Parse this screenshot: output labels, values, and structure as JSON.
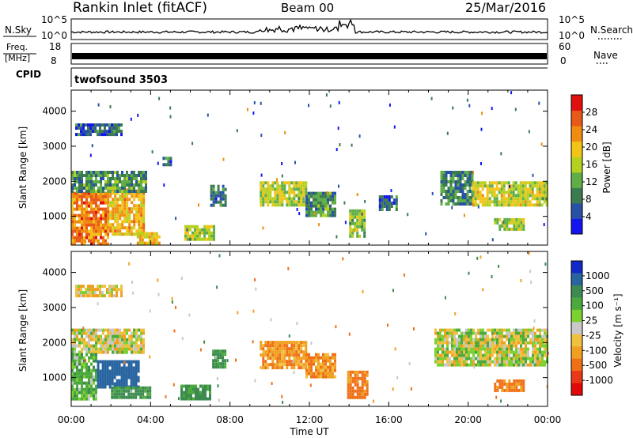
{
  "header": {
    "station": "Rankin Inlet (fitACF)",
    "beam": "Beam 00",
    "date": "25/Mar/2016"
  },
  "panels": {
    "nsky": {
      "left_label": "N.Sky",
      "right_label": "N.Search",
      "ticks_left": [
        "10^5",
        "10^0"
      ],
      "ticks_right": [
        "10^5",
        "10^0"
      ]
    },
    "freq": {
      "left_label_1": "Freq.",
      "left_label_2": "[MHz]",
      "right_label": "Nave",
      "ticks_left": [
        "18",
        "8"
      ],
      "ticks_right": [
        "60",
        "0"
      ]
    },
    "cpid": {
      "left_label": "CPID",
      "text": "twofsound 3503"
    }
  },
  "chart_data": [
    {
      "type": "heatmap",
      "name": "power",
      "xlabel": "",
      "ylabel": "Slant Range [km]",
      "xlim": [
        0,
        24
      ],
      "ylim": [
        180,
        4600
      ],
      "yticks": [
        1000,
        2000,
        3000,
        4000
      ],
      "colorbar": {
        "label": "Power [dB]",
        "ticks": [
          4,
          8,
          12,
          16,
          20,
          24,
          28
        ],
        "colors": [
          "#1414ee",
          "#2851a6",
          "#3c7a50",
          "#5fae48",
          "#b6d020",
          "#f2c418",
          "#f08c10",
          "#e85818",
          "#e01010"
        ]
      },
      "regions": [
        {
          "t0": 0.0,
          "t1": 1.8,
          "r0": 250,
          "r1": 1700,
          "level": 26
        },
        {
          "t0": 1.8,
          "t1": 3.6,
          "r0": 500,
          "r1": 1800,
          "level": 22
        },
        {
          "t0": 0.0,
          "t1": 3.8,
          "r0": 1700,
          "r1": 2300,
          "level": 11
        },
        {
          "t0": 0.2,
          "t1": 2.5,
          "r0": 3350,
          "r1": 3650,
          "level": 7
        },
        {
          "t0": 4.6,
          "t1": 5.0,
          "r0": 2450,
          "r1": 2700,
          "level": 8
        },
        {
          "t0": 3.3,
          "t1": 4.4,
          "r0": 200,
          "r1": 550,
          "level": 21
        },
        {
          "t0": 5.7,
          "t1": 7.2,
          "r0": 350,
          "r1": 750,
          "level": 16
        },
        {
          "t0": 7.0,
          "t1": 7.8,
          "r0": 1300,
          "r1": 1900,
          "level": 8
        },
        {
          "t0": 9.5,
          "t1": 11.8,
          "r0": 1300,
          "r1": 2000,
          "level": 17
        },
        {
          "t0": 11.8,
          "t1": 13.3,
          "r0": 1000,
          "r1": 1700,
          "level": 11
        },
        {
          "t0": 14.0,
          "t1": 14.8,
          "r0": 450,
          "r1": 1200,
          "level": 15
        },
        {
          "t0": 15.5,
          "t1": 16.4,
          "r0": 1200,
          "r1": 1600,
          "level": 7
        },
        {
          "t0": 18.6,
          "t1": 20.2,
          "r0": 1350,
          "r1": 2300,
          "level": 10
        },
        {
          "t0": 20.2,
          "t1": 24.0,
          "r0": 1300,
          "r1": 2000,
          "level": 18
        },
        {
          "t0": 21.3,
          "t1": 22.8,
          "r0": 650,
          "r1": 950,
          "level": 17
        }
      ]
    },
    {
      "type": "heatmap",
      "name": "velocity",
      "xlabel": "Time UT",
      "ylabel": "Slant Range [km]",
      "xlim": [
        0,
        24
      ],
      "ylim": [
        180,
        4600
      ],
      "yticks": [
        1000,
        2000,
        3000,
        4000
      ],
      "xticks": [
        "00:00",
        "04:00",
        "08:00",
        "12:00",
        "16:00",
        "20:00",
        "00:00"
      ],
      "colorbar": {
        "label": "Velocity [m s⁻¹]",
        "ticks": [
          "1000",
          "500",
          "100",
          "25",
          "-25",
          "-100",
          "-500",
          "-1000"
        ],
        "colors": [
          "#1428c8",
          "#2864a0",
          "#3c8a50",
          "#4caa3c",
          "#7cd030",
          "#c8c8c8",
          "#f0c040",
          "#f0a020",
          "#f07018",
          "#e83818",
          "#e00808"
        ]
      },
      "regions": [
        {
          "t0": 0.0,
          "t1": 3.7,
          "r0": 1700,
          "r1": 2400,
          "level": 0
        },
        {
          "t0": 0.0,
          "t1": 1.3,
          "r0": 400,
          "r1": 1700,
          "level": 150
        },
        {
          "t0": 1.3,
          "t1": 3.4,
          "r0": 700,
          "r1": 1500,
          "level": 800
        },
        {
          "t0": 2.0,
          "t1": 4.0,
          "r0": 450,
          "r1": 750,
          "level": 300
        },
        {
          "t0": 5.5,
          "t1": 7.0,
          "r0": 400,
          "r1": 800,
          "level": 300
        },
        {
          "t0": 7.1,
          "t1": 7.7,
          "r0": 1300,
          "r1": 1800,
          "level": 300
        },
        {
          "t0": 9.5,
          "t1": 11.8,
          "r0": 1300,
          "r1": 2050,
          "level": -200
        },
        {
          "t0": 11.8,
          "t1": 13.3,
          "r0": 1000,
          "r1": 1700,
          "level": -200
        },
        {
          "t0": 13.9,
          "t1": 14.9,
          "r0": 450,
          "r1": 1200,
          "level": -300
        },
        {
          "t0": 18.3,
          "t1": 24.0,
          "r0": 1400,
          "r1": 2400,
          "level": 0
        },
        {
          "t0": 21.3,
          "t1": 22.8,
          "r0": 650,
          "r1": 950,
          "level": -300
        },
        {
          "t0": 0.2,
          "t1": 2.5,
          "r0": 3350,
          "r1": 3650,
          "level": -80
        }
      ]
    }
  ]
}
